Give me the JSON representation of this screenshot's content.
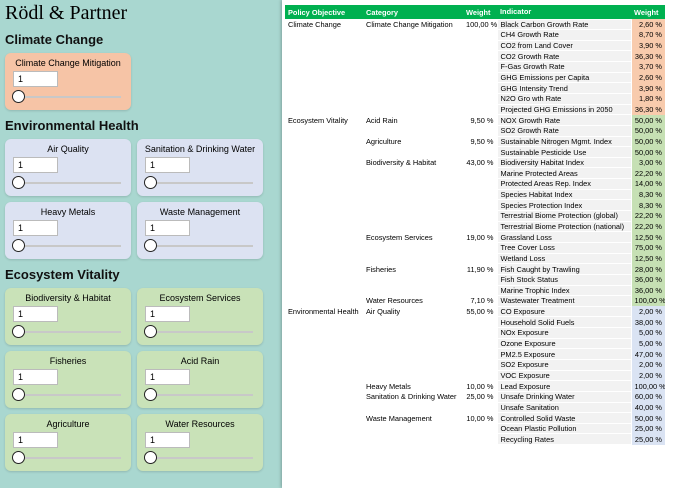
{
  "app": {
    "title": "Rödl & Partner",
    "sections": [
      {
        "title": "Climate Change",
        "cards": [
          {
            "label": "Climate Change Mitigation",
            "value": 1
          }
        ]
      },
      {
        "title": "Environmental Health",
        "cards": [
          {
            "label": "Air Quality",
            "value": 1
          },
          {
            "label": "Sanitation & Drinking Water",
            "value": 1
          },
          {
            "label": "Heavy Metals",
            "value": 1
          },
          {
            "label": "Waste Management",
            "value": 1
          }
        ]
      },
      {
        "title": "Ecosystem Vitality",
        "cards": [
          {
            "label": "Biodiversity & Habitat",
            "value": 1
          },
          {
            "label": "Ecosystem Services",
            "value": 1
          },
          {
            "label": "Fisheries",
            "value": 1
          },
          {
            "label": "Acid Rain",
            "value": 1
          },
          {
            "label": "Agriculture",
            "value": 1
          },
          {
            "label": "Water Resources",
            "value": 1
          }
        ]
      }
    ]
  },
  "table": {
    "header": [
      "Policy Objective",
      "Category",
      "Weight",
      "Indicator",
      "Weight"
    ],
    "rows": [
      [
        "Climate Change",
        "Climate Change Mitigation",
        "100,00 %",
        "Black Carbon Growth Rate",
        "2,60 %"
      ],
      [
        null,
        null,
        null,
        "CH4 Growth Rate",
        "8,70 %"
      ],
      [
        null,
        null,
        null,
        "CO2 from Land Cover",
        "3,90 %"
      ],
      [
        null,
        null,
        null,
        "CO2 Growth Rate",
        "36,30 %"
      ],
      [
        null,
        null,
        null,
        "F-Gas Growth Rate",
        "3,70 %"
      ],
      [
        null,
        null,
        null,
        "GHG Emissions per Capita",
        "2,60 %"
      ],
      [
        null,
        null,
        null,
        "GHG Intensity Trend",
        "3,90 %"
      ],
      [
        null,
        null,
        null,
        "N2O Gro wth Rate",
        "1,80 %"
      ],
      [
        null,
        null,
        null,
        "Projected GHG Emissions in 2050",
        "36,30 %"
      ],
      [
        "Ecosystem Vitality",
        "Acid Rain",
        "9,50 %",
        "NOX Growth Rate",
        "50,00 %"
      ],
      [
        null,
        null,
        null,
        "SO2 Growth Rate",
        "50,00 %"
      ],
      [
        null,
        "Agriculture",
        "9,50 %",
        "Sustainable Nitrogen Mgmt. Index",
        "50,00 %"
      ],
      [
        null,
        null,
        null,
        "Sustainable Pesticide Use",
        "50,00 %"
      ],
      [
        null,
        "Biodiversity & Habitat",
        "43,00 %",
        "Biodiversity Habitat Index",
        "3,00 %"
      ],
      [
        null,
        null,
        null,
        "Marine Protected Areas",
        "22,20 %"
      ],
      [
        null,
        null,
        null,
        "Protected Areas Rep. Index",
        "14,00 %"
      ],
      [
        null,
        null,
        null,
        "Species Habitat Index",
        "8,30 %"
      ],
      [
        null,
        null,
        null,
        "Species Protection Index",
        "8,30 %"
      ],
      [
        null,
        null,
        null,
        "Terrestrial Biome Protection (global)",
        "22,20 %"
      ],
      [
        null,
        null,
        null,
        "Terrestrial Biome Protection (national)",
        "22,20 %"
      ],
      [
        null,
        "Ecosystem Services",
        "19,00 %",
        "Grassland Loss",
        "12,50 %"
      ],
      [
        null,
        null,
        null,
        "Tree Cover Loss",
        "75,00 %"
      ],
      [
        null,
        null,
        null,
        "Wetland Loss",
        "12,50 %"
      ],
      [
        null,
        "Fisheries",
        "11,90 %",
        "Fish Caught by Trawling",
        "28,00 %"
      ],
      [
        null,
        null,
        null,
        "Fish Stock Status",
        "36,00 %"
      ],
      [
        null,
        null,
        null,
        "Marine Trophic Index",
        "36,00 %"
      ],
      [
        null,
        "Water Resources",
        "7,10 %",
        "Wastewater Treatment",
        "100,00 %"
      ],
      [
        "Environmental Health",
        "Air Quality",
        "55,00 %",
        "CO Exposure",
        "2,00 %"
      ],
      [
        null,
        null,
        null,
        "Household Solid Fuels",
        "38,00 %"
      ],
      [
        null,
        null,
        null,
        "NOx Exposure",
        "5,00 %"
      ],
      [
        null,
        null,
        null,
        "Ozone Exposure",
        "5,00 %"
      ],
      [
        null,
        null,
        null,
        "PM2.5 Exposure",
        "47,00 %"
      ],
      [
        null,
        null,
        null,
        "SO2 Exposure",
        "2,00 %"
      ],
      [
        null,
        null,
        null,
        "VOC Exposure",
        "2,00 %"
      ],
      [
        null,
        "Heavy Metals",
        "10,00 %",
        "Lead Exposure",
        "100,00 %"
      ],
      [
        null,
        "Sanitation & Drinking Water",
        "25,00 %",
        "Unsafe Drinking Water",
        "60,00 %"
      ],
      [
        null,
        null,
        null,
        "Unsafe Sanitation",
        "40,00 %"
      ],
      [
        null,
        "Waste Management",
        "10,00 %",
        "Controlled Solid Waste",
        "50,00 %"
      ],
      [
        null,
        null,
        null,
        "Ocean Plastic Pollution",
        "25,00 %"
      ],
      [
        null,
        null,
        null,
        "Recycling Rates",
        "25,00 %"
      ]
    ]
  }
}
